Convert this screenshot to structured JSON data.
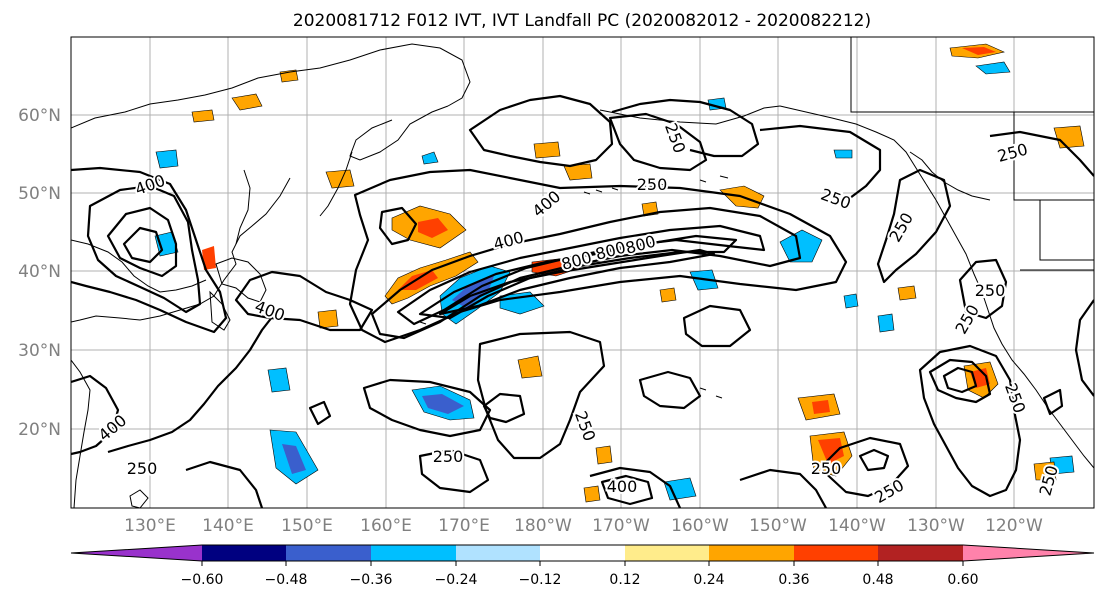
{
  "title": "2020081712 F012 IVT, IVT Landfall PC (2020082012 - 2020082212)",
  "map": {
    "lat_labels": [
      "60°N",
      "50°N",
      "40°N",
      "30°N",
      "20°N"
    ],
    "lon_labels": [
      "130°E",
      "140°E",
      "150°E",
      "160°E",
      "170°E",
      "180°W",
      "170°W",
      "160°W",
      "150°W",
      "140°W",
      "130°W",
      "120°W"
    ],
    "contour_labels": [
      "250",
      "250",
      "250",
      "250",
      "250",
      "250",
      "250",
      "250",
      "250",
      "250",
      "250",
      "250",
      "250",
      "250",
      "400",
      "400",
      "400",
      "400",
      "400",
      "400",
      "800",
      "800",
      "800"
    ]
  },
  "colorbar": {
    "ticks": [
      "−0.60",
      "−0.48",
      "−0.36",
      "−0.24",
      "−0.12",
      "0.12",
      "0.24",
      "0.36",
      "0.48",
      "0.60"
    ],
    "colors": [
      "#9932cc",
      "#000080",
      "#3a5fcd",
      "#00bfff",
      "#b0e2ff",
      "#ffffff",
      "#ffec8b",
      "#ffa500",
      "#ff4000",
      "#b22222",
      "#ff82ab"
    ]
  }
}
